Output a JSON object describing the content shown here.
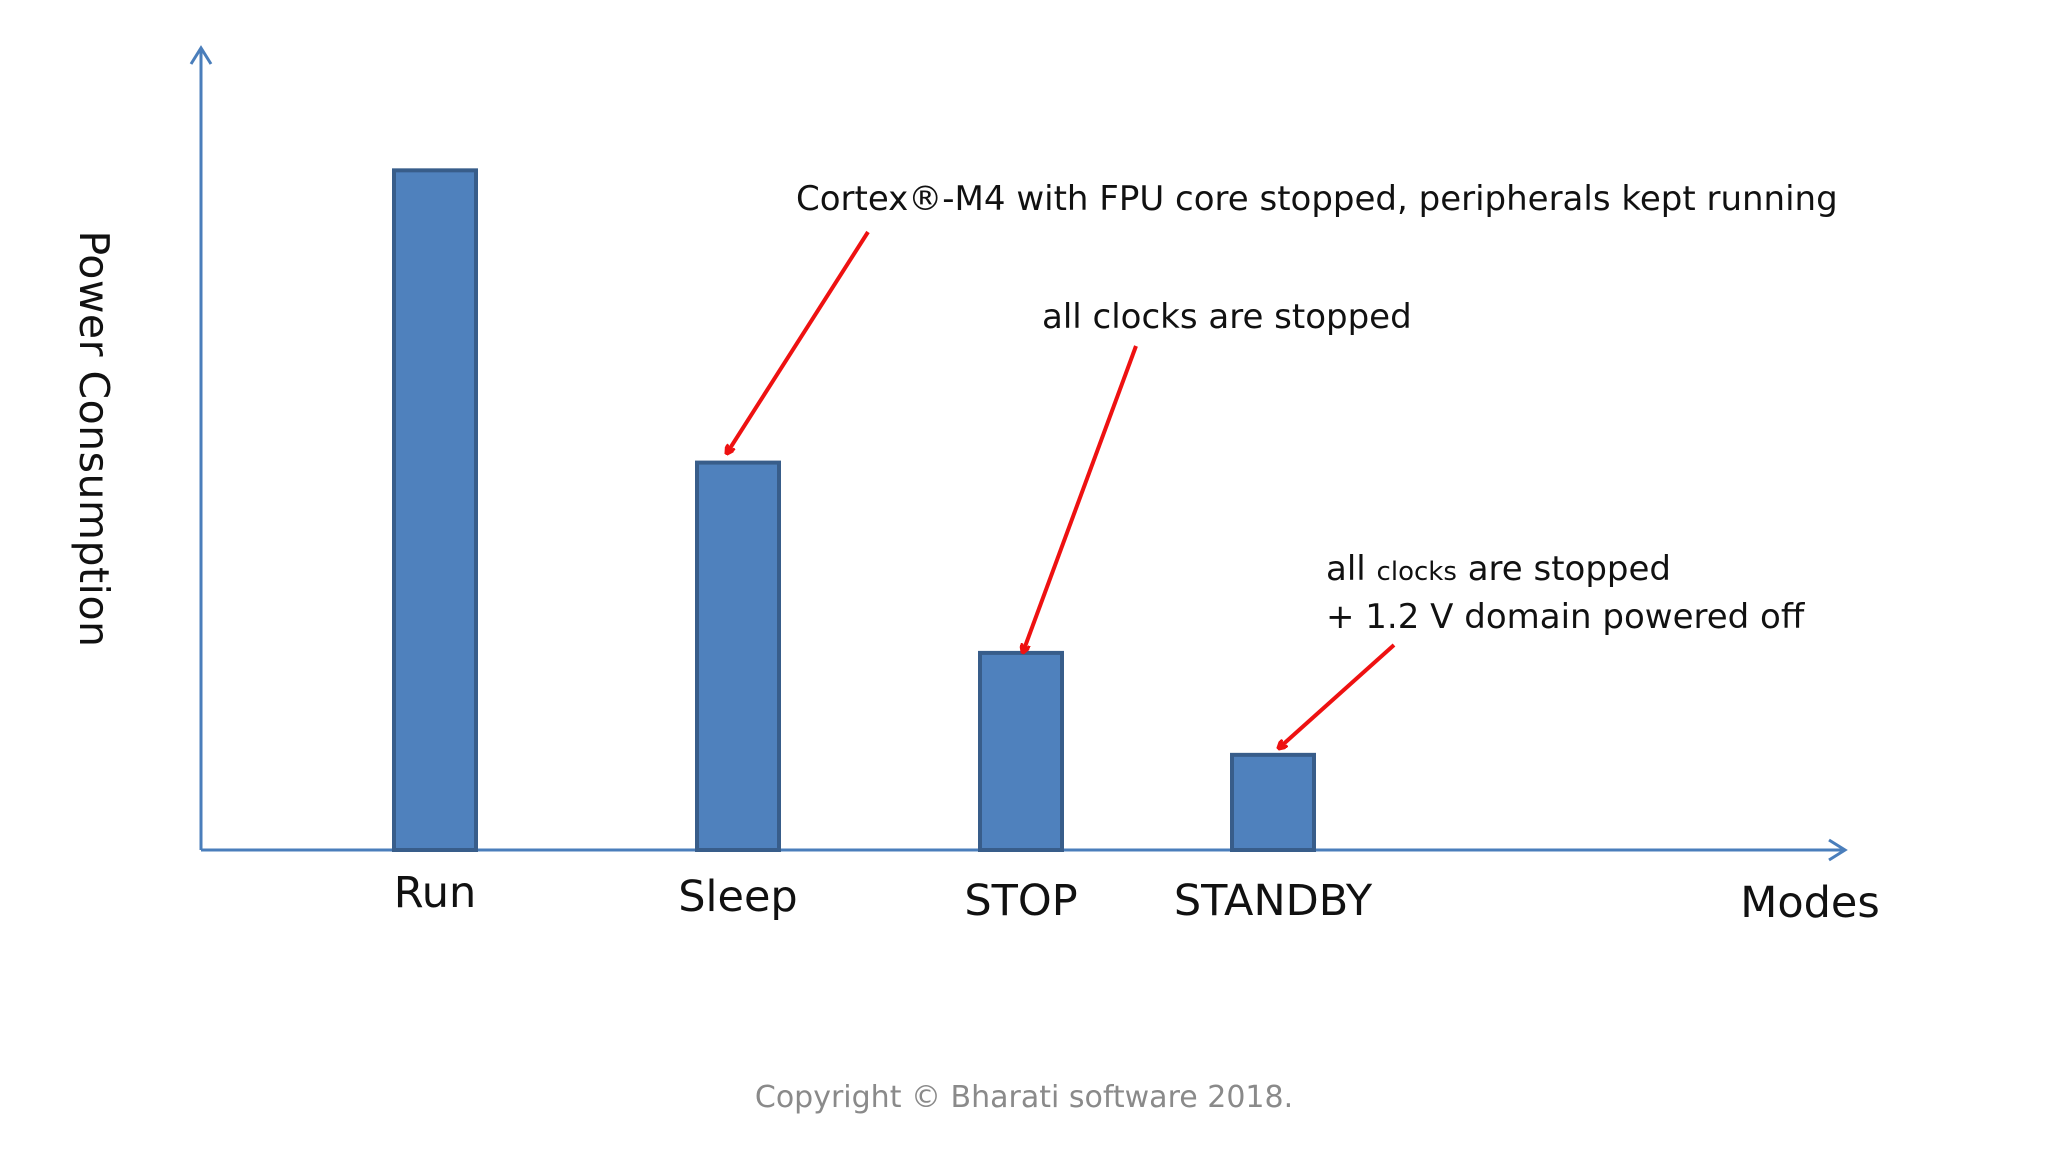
{
  "chart_data": {
    "type": "bar",
    "categories": [
      "Run",
      "Sleep",
      "STOP",
      "STANDBY"
    ],
    "values": [
      100,
      57,
      29,
      14
    ],
    "xlabel": "Modes",
    "ylabel": "Power Consumption",
    "ylim": [
      0,
      118
    ],
    "grid": false,
    "annotations": [
      {
        "target": "Sleep",
        "lines": [
          "Cortex®-M4 with FPU core stopped, peripherals kept running"
        ]
      },
      {
        "target": "STOP",
        "lines": [
          "all clocks are stopped"
        ]
      },
      {
        "target": "STANDBY",
        "lines": [
          "all clocks are stopped",
          "+ 1.2 V domain powered off"
        ]
      }
    ]
  },
  "colors": {
    "bar_fill": "#4f81bd",
    "bar_stroke": "#385d8a",
    "axis": "#4a7ebb",
    "arrow": "#ee1111"
  },
  "footer": {
    "copyright": "Copyright © Bharati software 2018."
  }
}
